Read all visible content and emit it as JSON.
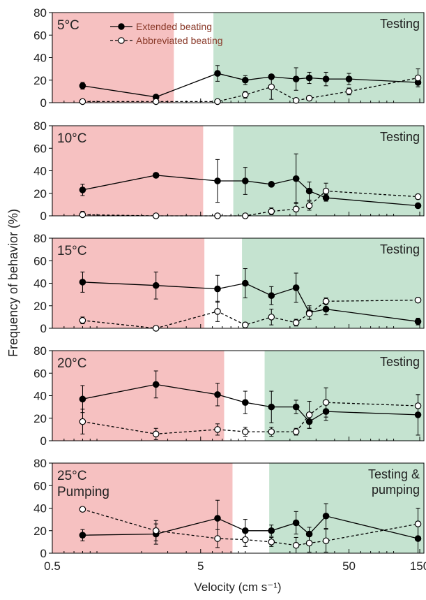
{
  "y_axis_label": "Frequency of behavior (%)",
  "x_axis_label": "Velocity (cm s⁻¹)",
  "x_tick_labels": [
    "0.5",
    "5",
    "50",
    "150"
  ],
  "y_tick_labels": [
    "0",
    "20",
    "40",
    "60",
    "80"
  ],
  "legend": {
    "extended": "Extended beating",
    "abbreviated": "Abbreviated beating"
  },
  "colors": {
    "red_zone": "#f6c1c1",
    "green_zone": "#c5e3d0",
    "legend_text": "#8a3a2a",
    "line": "#000000"
  },
  "chart_data": [
    {
      "type": "line",
      "temperature": "5°C",
      "region_label": "Testing",
      "xscale": "log",
      "xlim": [
        0.5,
        160
      ],
      "ylim": [
        0,
        80
      ],
      "red_zone": [
        0.5,
        3.3
      ],
      "green_zone": [
        6.1,
        160
      ],
      "x": [
        0.8,
        2.5,
        6.5,
        10,
        15,
        22,
        27,
        35,
        50,
        146
      ],
      "series": [
        {
          "name": "Extended beating",
          "marker": "filled",
          "line": "solid",
          "values": [
            15,
            5,
            26,
            20,
            23,
            21,
            22,
            21,
            21,
            18
          ],
          "errors": [
            3,
            1,
            7,
            4,
            2,
            10,
            5,
            6,
            5,
            4
          ]
        },
        {
          "name": "Abbreviated beating",
          "marker": "open",
          "line": "dashed",
          "values": [
            1,
            1,
            1,
            7,
            14,
            2,
            4,
            null,
            10,
            22
          ],
          "errors": [
            0,
            0,
            0,
            3,
            11,
            1,
            2,
            null,
            3,
            8
          ]
        }
      ]
    },
    {
      "type": "line",
      "temperature": "10°C",
      "region_label": "Testing",
      "xscale": "log",
      "xlim": [
        0.5,
        160
      ],
      "ylim": [
        0,
        80
      ],
      "red_zone": [
        0.5,
        5.2
      ],
      "green_zone": [
        8.3,
        160
      ],
      "x": [
        0.8,
        2.5,
        6.5,
        10,
        15,
        22,
        27,
        35,
        50,
        146
      ],
      "series": [
        {
          "name": "Extended beating",
          "marker": "filled",
          "line": "solid",
          "values": [
            23,
            36,
            31,
            31,
            28,
            33,
            22,
            16,
            null,
            9
          ],
          "errors": [
            5,
            0,
            19,
            12,
            0,
            22,
            8,
            3,
            null,
            0
          ]
        },
        {
          "name": "Abbreviated beating",
          "marker": "open",
          "line": "dashed",
          "values": [
            1,
            0,
            0,
            0,
            4,
            6,
            9,
            22,
            null,
            17
          ],
          "errors": [
            3,
            0,
            0,
            0,
            3,
            6,
            4,
            7,
            null,
            0
          ]
        }
      ]
    },
    {
      "type": "line",
      "temperature": "15°C",
      "region_label": "Testing",
      "xscale": "log",
      "xlim": [
        0.5,
        160
      ],
      "ylim": [
        0,
        80
      ],
      "red_zone": [
        0.5,
        5.3
      ],
      "green_zone": [
        9.5,
        160
      ],
      "x": [
        0.8,
        2.5,
        6.5,
        10,
        15,
        22,
        27,
        35,
        50,
        146
      ],
      "series": [
        {
          "name": "Extended beating",
          "marker": "filled",
          "line": "solid",
          "values": [
            41,
            38,
            35,
            40,
            29,
            36,
            14,
            17,
            null,
            6
          ],
          "errors": [
            9,
            12,
            12,
            13,
            8,
            13,
            6,
            5,
            null,
            3
          ]
        },
        {
          "name": "Abbreviated beating",
          "marker": "open",
          "line": "dashed",
          "values": [
            7,
            0,
            15,
            3,
            10,
            5,
            13,
            24,
            null,
            25
          ],
          "errors": [
            3,
            0,
            9,
            2,
            7,
            3,
            5,
            3,
            null,
            0
          ]
        }
      ]
    },
    {
      "type": "line",
      "temperature": "20°C",
      "region_label": "Testing",
      "xscale": "log",
      "xlim": [
        0.5,
        160
      ],
      "ylim": [
        0,
        80
      ],
      "red_zone": [
        0.5,
        7.2
      ],
      "green_zone": [
        13.5,
        160
      ],
      "x": [
        0.8,
        2.5,
        6.5,
        10,
        15,
        22,
        27,
        35,
        50,
        146
      ],
      "series": [
        {
          "name": "Extended beating",
          "marker": "filled",
          "line": "solid",
          "values": [
            37,
            50,
            41,
            34,
            30,
            30,
            17,
            26,
            null,
            23
          ],
          "errors": [
            12,
            12,
            10,
            10,
            14,
            6,
            6,
            8,
            null,
            18
          ]
        },
        {
          "name": "Abbreviated beating",
          "marker": "open",
          "line": "dashed",
          "values": [
            17,
            6,
            10,
            8,
            8,
            8,
            23,
            34,
            null,
            31
          ],
          "errors": [
            11,
            5,
            5,
            4,
            4,
            3,
            12,
            13,
            null,
            10
          ]
        }
      ]
    },
    {
      "type": "line",
      "temperature": "25°C",
      "subtitle": "Pumping",
      "region_label": "Testing &\npumping",
      "xscale": "log",
      "xlim": [
        0.5,
        160
      ],
      "ylim": [
        0,
        80
      ],
      "red_zone": [
        0.5,
        8.2
      ],
      "green_zone": [
        14.5,
        160
      ],
      "x": [
        0.8,
        2.5,
        6.5,
        10,
        15,
        22,
        27,
        35,
        50,
        146
      ],
      "series": [
        {
          "name": "Extended beating",
          "marker": "filled",
          "line": "solid",
          "values": [
            16,
            17,
            31,
            20,
            20,
            27,
            17,
            33,
            null,
            13
          ],
          "errors": [
            5,
            9,
            16,
            10,
            5,
            10,
            6,
            11,
            null,
            13
          ]
        },
        {
          "name": "Abbreviated beating",
          "marker": "open",
          "line": "dashed",
          "values": [
            39,
            20,
            13,
            12,
            10,
            7,
            9,
            11,
            null,
            26
          ],
          "errors": [
            2,
            9,
            8,
            6,
            4,
            7,
            8,
            10,
            null,
            14
          ]
        }
      ]
    }
  ]
}
